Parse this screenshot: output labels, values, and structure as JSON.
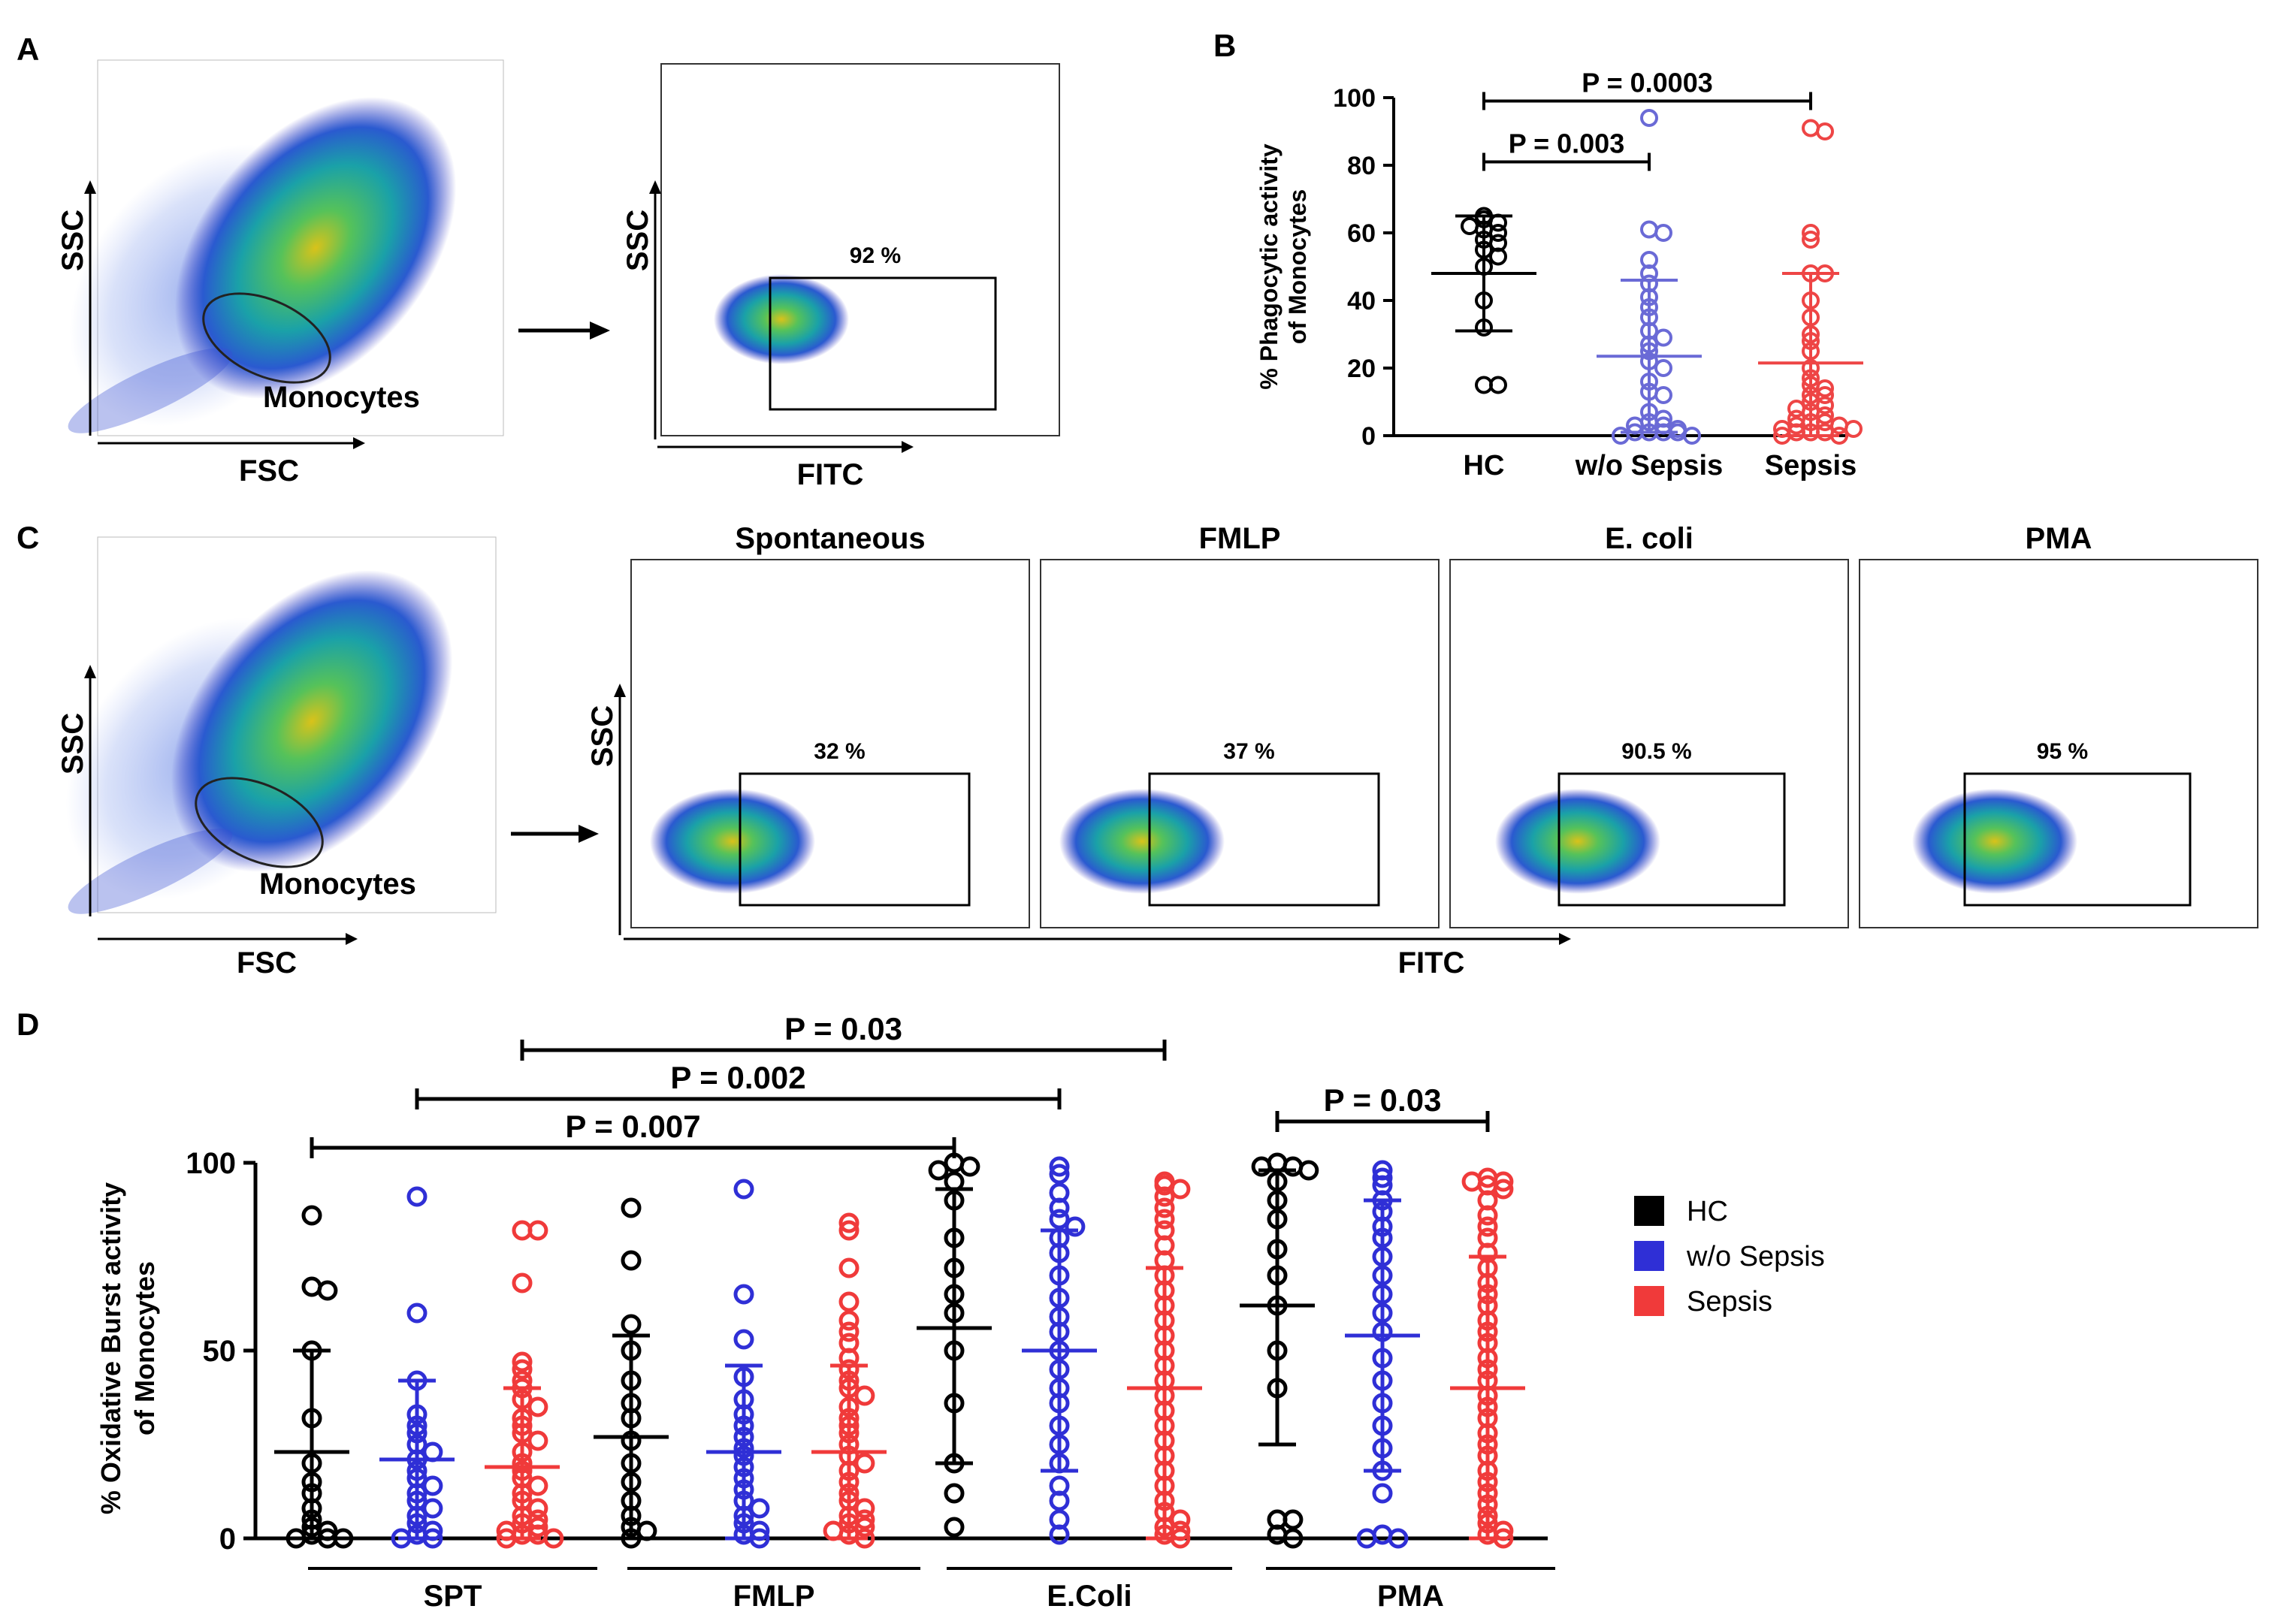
{
  "panels": {
    "A": {
      "letter": "A",
      "scatter1": {
        "x_label": "FSC",
        "y_label": "SSC",
        "gate_label": "Monocytes"
      },
      "scatter2": {
        "x_label": "FITC",
        "y_label": "SSC",
        "gate_pct": "92 %"
      }
    },
    "C": {
      "letter": "C",
      "scatter1": {
        "x_label": "FSC",
        "y_label": "SSC",
        "gate_label": "Monocytes"
      },
      "y_label": "SSC",
      "x_label": "FITC",
      "plots": [
        {
          "title": "Spontaneous",
          "pct": "32 %"
        },
        {
          "title": "FMLP",
          "pct": "37 %"
        },
        {
          "title": "E. coli",
          "pct": "90.5 %"
        },
        {
          "title": "PMA",
          "pct": "95 %"
        }
      ]
    }
  },
  "colors": {
    "HC": "#000000",
    "woSepsis": "#2f2fd6",
    "Sepsis": "#f03a3a",
    "woSepsisB": "#6a6ad6",
    "SepsisB": "#ee4545"
  },
  "chart_data": [
    {
      "id": "B",
      "letter": "B",
      "type": "scatter",
      "ylabel_line1": "% Phagocytic activity",
      "ylabel_line2": "of Monocytes",
      "ylim": [
        0,
        100
      ],
      "yticks": [
        "0",
        "20",
        "40",
        "60",
        "80",
        "100"
      ],
      "categories": [
        "HC",
        "w/o Sepsis",
        "Sepsis"
      ],
      "series": [
        {
          "name": "HC",
          "mean": 48,
          "sd_low": 31,
          "sd_high": 65,
          "values": [
            65,
            64,
            63,
            62,
            61,
            60,
            58,
            57,
            55,
            53,
            50,
            40,
            32,
            15,
            15
          ]
        },
        {
          "name": "w/o Sepsis",
          "mean": 23.5,
          "sd_low": 1,
          "sd_high": 46,
          "values": [
            94,
            61,
            60,
            52,
            48,
            45,
            41,
            38,
            35,
            31,
            29,
            27,
            25,
            22,
            20,
            16,
            13,
            12,
            7,
            5,
            4,
            3,
            3,
            2,
            1,
            1,
            1,
            1,
            0,
            0
          ]
        },
        {
          "name": "Sepsis",
          "mean": 21.5,
          "sd_low": 0,
          "sd_high": 48,
          "values": [
            91,
            90,
            60,
            58,
            48,
            48,
            40,
            35,
            30,
            28,
            25,
            20,
            17,
            15,
            14,
            12,
            12,
            10,
            9,
            8,
            7,
            6,
            5,
            4,
            4,
            3,
            3,
            2,
            2,
            1,
            1,
            1,
            0,
            0
          ]
        }
      ],
      "annotations": [
        {
          "text": "P = 0.003",
          "from": "HC",
          "to": "w/o Sepsis",
          "y": 81
        },
        {
          "text": "P = 0.0003",
          "from": "HC",
          "to": "Sepsis",
          "y": 99
        }
      ]
    },
    {
      "id": "D",
      "letter": "D",
      "type": "scatter",
      "ylabel_line1": "% Oxidative Burst activity",
      "ylabel_line2": "of Monocytes",
      "ylim": [
        0,
        100
      ],
      "yticks": [
        "0",
        "50",
        "100"
      ],
      "groups": [
        "SPT",
        "FMLP",
        "E.Coli",
        "PMA"
      ],
      "legend": {
        "position": "right",
        "items": [
          "HC",
          "w/o Sepsis",
          "Sepsis"
        ]
      },
      "series": [
        {
          "group": "SPT",
          "name": "HC",
          "mean": 23,
          "sd_low": 0,
          "sd_high": 50,
          "values": [
            86,
            67,
            66,
            50,
            32,
            20,
            15,
            12,
            8,
            5,
            3,
            2,
            1,
            0,
            0,
            0
          ]
        },
        {
          "group": "SPT",
          "name": "w/o Sepsis",
          "mean": 21,
          "sd_low": 0,
          "sd_high": 42,
          "values": [
            91,
            60,
            42,
            33,
            30,
            28,
            25,
            23,
            21,
            18,
            16,
            14,
            12,
            10,
            8,
            6,
            4,
            2,
            1,
            0,
            0
          ]
        },
        {
          "group": "SPT",
          "name": "Sepsis",
          "mean": 19,
          "sd_low": 0,
          "sd_high": 40,
          "values": [
            82,
            82,
            68,
            47,
            45,
            42,
            40,
            37,
            35,
            32,
            30,
            28,
            26,
            23,
            20,
            18,
            16,
            14,
            12,
            10,
            8,
            6,
            5,
            4,
            3,
            2,
            1,
            1,
            0,
            0
          ]
        },
        {
          "group": "FMLP",
          "name": "HC",
          "mean": 27,
          "sd_low": 0,
          "sd_high": 54,
          "values": [
            88,
            74,
            57,
            50,
            42,
            36,
            32,
            26,
            20,
            15,
            10,
            6,
            3,
            2,
            0
          ]
        },
        {
          "group": "FMLP",
          "name": "w/o Sepsis",
          "mean": 23,
          "sd_low": 0,
          "sd_high": 46,
          "values": [
            93,
            65,
            53,
            43,
            37,
            33,
            30,
            27,
            24,
            22,
            19,
            16,
            13,
            10,
            8,
            6,
            4,
            2,
            1,
            0
          ]
        },
        {
          "group": "FMLP",
          "name": "Sepsis",
          "mean": 23,
          "sd_low": 0,
          "sd_high": 46,
          "values": [
            84,
            82,
            72,
            63,
            58,
            55,
            52,
            48,
            45,
            42,
            40,
            38,
            35,
            32,
            30,
            28,
            25,
            22,
            20,
            18,
            15,
            12,
            10,
            8,
            6,
            5,
            4,
            3,
            2,
            1,
            0
          ]
        },
        {
          "group": "E.Coli",
          "name": "HC",
          "mean": 56,
          "sd_low": 20,
          "sd_high": 93,
          "values": [
            100,
            99,
            98,
            95,
            90,
            80,
            72,
            65,
            60,
            50,
            36,
            20,
            12,
            3
          ]
        },
        {
          "group": "E.Coli",
          "name": "w/o Sepsis",
          "mean": 50,
          "sd_low": 18,
          "sd_high": 82,
          "values": [
            99,
            97,
            92,
            88,
            85,
            83,
            80,
            76,
            70,
            64,
            59,
            55,
            50,
            45,
            40,
            36,
            30,
            25,
            20,
            14,
            10,
            5,
            1
          ]
        },
        {
          "group": "E.Coli",
          "name": "Sepsis",
          "mean": 40,
          "sd_low": 0,
          "sd_high": 72,
          "values": [
            95,
            94,
            93,
            91,
            88,
            85,
            82,
            78,
            74,
            70,
            66,
            62,
            58,
            54,
            50,
            46,
            42,
            38,
            34,
            30,
            26,
            22,
            18,
            14,
            10,
            7,
            5,
            3,
            2,
            1,
            0
          ]
        },
        {
          "group": "PMA",
          "name": "HC",
          "mean": 62,
          "sd_low": 25,
          "sd_high": 98,
          "values": [
            100,
            99,
            99,
            98,
            95,
            90,
            85,
            77,
            70,
            62,
            50,
            40,
            5,
            5,
            1,
            0
          ]
        },
        {
          "group": "PMA",
          "name": "w/o Sepsis",
          "mean": 54,
          "sd_low": 18,
          "sd_high": 90,
          "values": [
            98,
            96,
            94,
            90,
            87,
            83,
            80,
            75,
            70,
            65,
            60,
            55,
            48,
            42,
            36,
            30,
            24,
            18,
            12,
            1,
            0,
            0
          ]
        },
        {
          "group": "PMA",
          "name": "Sepsis",
          "mean": 40,
          "sd_low": 0,
          "sd_high": 75,
          "values": [
            96,
            95,
            95,
            94,
            93,
            90,
            86,
            83,
            80,
            76,
            72,
            68,
            65,
            62,
            58,
            55,
            52,
            48,
            45,
            42,
            38,
            35,
            32,
            28,
            25,
            22,
            18,
            15,
            12,
            9,
            6,
            4,
            2,
            1,
            0
          ]
        }
      ],
      "annotations": [
        {
          "text": "P = 0.007",
          "from_group": "SPT",
          "from": "HC",
          "to_group": "E.Coli",
          "to": "HC",
          "y": 104
        },
        {
          "text": "P = 0.002",
          "from_group": "SPT",
          "from": "w/o Sepsis",
          "to_group": "E.Coli",
          "to": "w/o Sepsis",
          "y": 117
        },
        {
          "text": "P = 0.03",
          "from_group": "SPT",
          "from": "Sepsis",
          "to_group": "E.Coli",
          "to": "Sepsis",
          "y": 130
        },
        {
          "text": "P = 0.03",
          "from_group": "PMA",
          "from": "HC",
          "to_group": "PMA",
          "to": "Sepsis",
          "y": 111
        }
      ]
    }
  ]
}
